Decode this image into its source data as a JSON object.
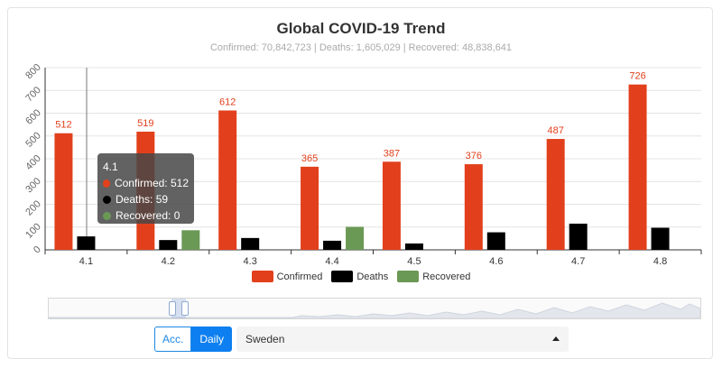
{
  "chart_data": {
    "type": "bar",
    "title": "Global COVID-19 Trend",
    "subtitle": "Confirmed: 70,842,723 | Deaths: 1,605,029 | Recovered: 48,838,641",
    "categories": [
      "4.1",
      "4.2",
      "4.3",
      "4.4",
      "4.5",
      "4.6",
      "4.7",
      "4.8"
    ],
    "series": [
      {
        "name": "Confirmed",
        "color": "#e2401c",
        "values": [
          512,
          519,
          612,
          365,
          387,
          376,
          487,
          726
        ],
        "show_labels": true
      },
      {
        "name": "Deaths",
        "color": "#000000",
        "values": [
          59,
          43,
          52,
          40,
          28,
          77,
          115,
          97
        ],
        "show_labels": false
      },
      {
        "name": "Recovered",
        "color": "#6a9955",
        "values": [
          0,
          86,
          0,
          101,
          0,
          0,
          0,
          0
        ],
        "show_labels": false
      }
    ],
    "yticks": [
      0,
      100,
      200,
      300,
      400,
      500,
      600,
      700,
      800
    ],
    "ylim": [
      0,
      800
    ],
    "grid": true,
    "legend": "bottom-center"
  },
  "tooltip": {
    "title": "4.1",
    "rows": [
      {
        "label": "Confirmed: 512",
        "color": "#e2401c"
      },
      {
        "label": "Deaths: 59",
        "color": "#000000"
      },
      {
        "label": "Recovered: 0",
        "color": "#6a9955"
      }
    ]
  },
  "controls": {
    "acc_label": "Acc.",
    "daily_label": "Daily",
    "country": "Sweden"
  }
}
